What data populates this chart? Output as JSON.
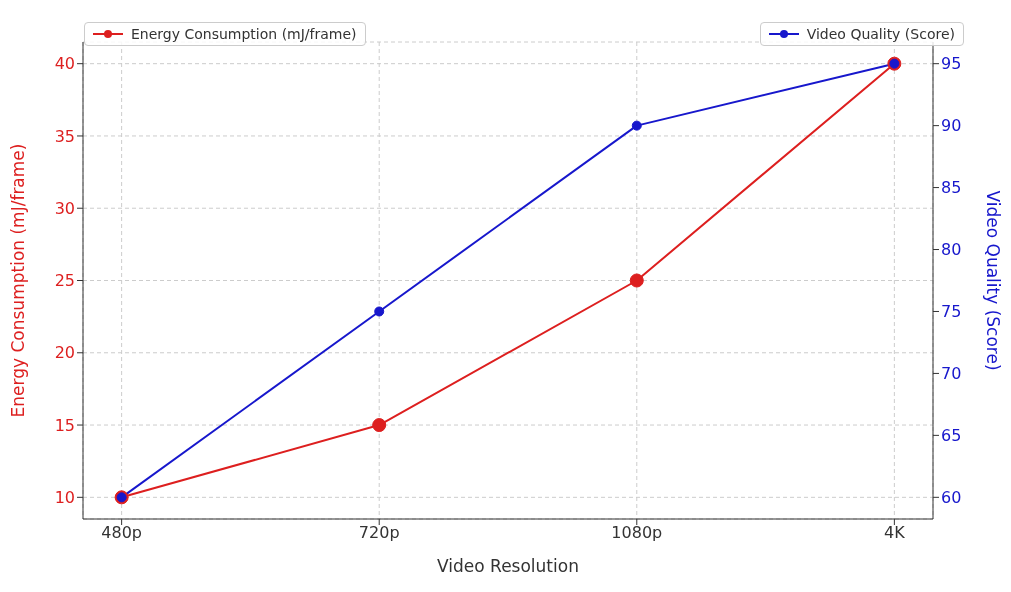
{
  "chart_data": {
    "type": "line",
    "xlabel": "Video Resolution",
    "ylabel": "Energy Consumption (mJ/frame)",
    "y2label": "Video Quality (Score)",
    "categories": [
      "480p",
      "720p",
      "1080p",
      "4K"
    ],
    "series": [
      {
        "name": "Energy Consumption (mJ/frame)",
        "color": "#dd1f1f",
        "values": [
          10,
          15,
          25,
          40
        ]
      },
      {
        "name": "Video Quality (Score)",
        "color": "#1717cc",
        "values": [
          60,
          75,
          90,
          95
        ],
        "axis": "y2"
      }
    ],
    "ylim": [
      8.5,
      41.5
    ],
    "yticks": [
      10,
      15,
      20,
      25,
      30,
      35,
      40
    ],
    "y2lim": [
      58.25,
      96.75
    ],
    "y2ticks": [
      60,
      65,
      70,
      75,
      80,
      85,
      90,
      95
    ],
    "grid": true,
    "legend": "top",
    "marker": "circle",
    "line_style": "solid"
  }
}
